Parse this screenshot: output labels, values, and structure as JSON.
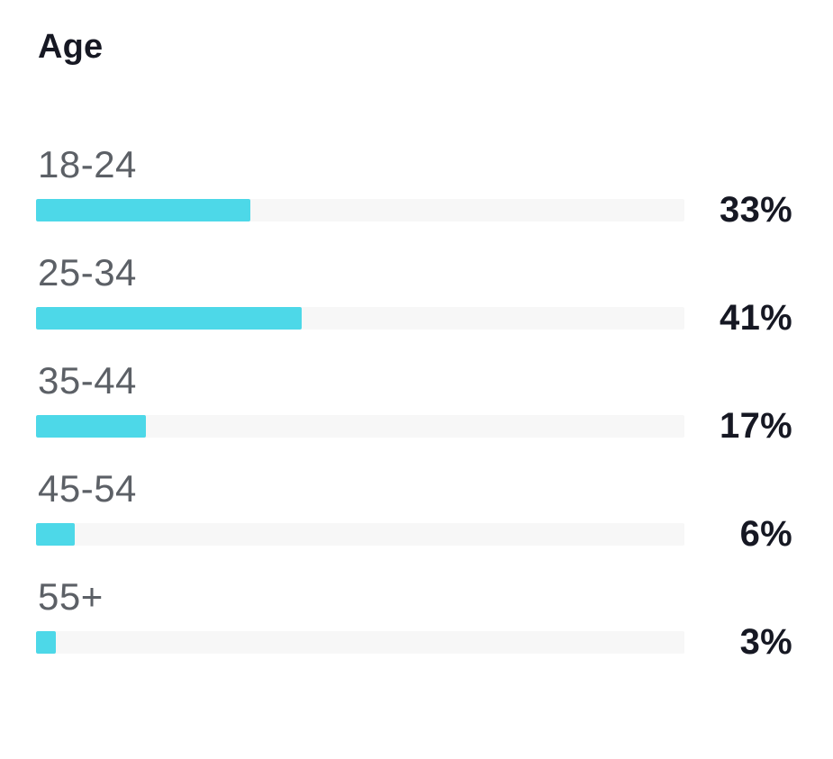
{
  "title": "Age",
  "colors": {
    "background": "#ffffff",
    "bar_fill": "#4dd8e8",
    "bar_track": "#f7f7f7",
    "title_text": "#161823",
    "label_text": "#5c6066",
    "value_text": "#161823"
  },
  "chart_data": {
    "type": "bar",
    "orientation": "horizontal",
    "title": "Age",
    "categories": [
      "18-24",
      "25-34",
      "35-44",
      "45-54",
      "55+"
    ],
    "values": [
      33,
      41,
      17,
      6,
      3
    ],
    "value_labels": [
      "33%",
      "41%",
      "17%",
      "6%",
      "3%"
    ],
    "unit": "%",
    "xlim": [
      0,
      100
    ],
    "grid": false,
    "legend": false,
    "value_label_position": "right"
  }
}
